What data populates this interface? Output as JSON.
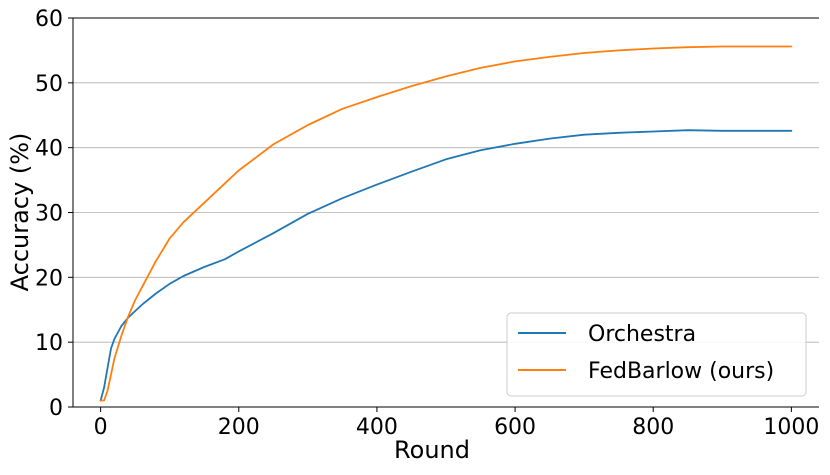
{
  "chart_data": {
    "type": "line",
    "title": "",
    "xlabel": "Round",
    "ylabel": "Accuracy (%)",
    "xlim": [
      -40,
      1040
    ],
    "ylim": [
      0,
      60
    ],
    "xticks": [
      "0",
      "200",
      "400",
      "600",
      "800",
      "1000"
    ],
    "yticks": [
      "0",
      "10",
      "20",
      "30",
      "40",
      "50",
      "60"
    ],
    "grid": "horizontal",
    "legend_position": "bottom-right",
    "series": [
      {
        "name": "Orchestra",
        "color": "#1f77b4",
        "x": [
          0,
          5,
          10,
          15,
          20,
          30,
          40,
          50,
          60,
          80,
          100,
          120,
          150,
          180,
          200,
          250,
          300,
          350,
          400,
          450,
          500,
          550,
          600,
          650,
          700,
          750,
          800,
          850,
          900,
          950,
          1000
        ],
        "y": [
          1,
          3,
          6,
          9,
          10.5,
          12.5,
          13.8,
          14.8,
          15.8,
          17.5,
          19,
          20.2,
          21.6,
          22.8,
          24,
          26.8,
          29.8,
          32.2,
          34.3,
          36.3,
          38.2,
          39.6,
          40.6,
          41.4,
          42,
          42.3,
          42.5,
          42.7,
          42.6,
          42.6,
          42.6
        ]
      },
      {
        "name": "FedBarlow (ours)",
        "color": "#ff7f0e",
        "x": [
          0,
          5,
          10,
          15,
          20,
          30,
          40,
          50,
          60,
          80,
          100,
          120,
          150,
          180,
          200,
          250,
          300,
          350,
          400,
          450,
          500,
          550,
          600,
          650,
          700,
          750,
          800,
          850,
          900,
          950,
          1000
        ],
        "y": [
          1,
          1,
          2.5,
          5,
          7.5,
          11,
          14,
          16.5,
          18.5,
          22.5,
          26,
          28.5,
          31.5,
          34.5,
          36.5,
          40.5,
          43.5,
          46,
          47.8,
          49.5,
          51,
          52.3,
          53.3,
          54,
          54.6,
          55,
          55.3,
          55.5,
          55.6,
          55.6,
          55.6
        ]
      }
    ]
  }
}
